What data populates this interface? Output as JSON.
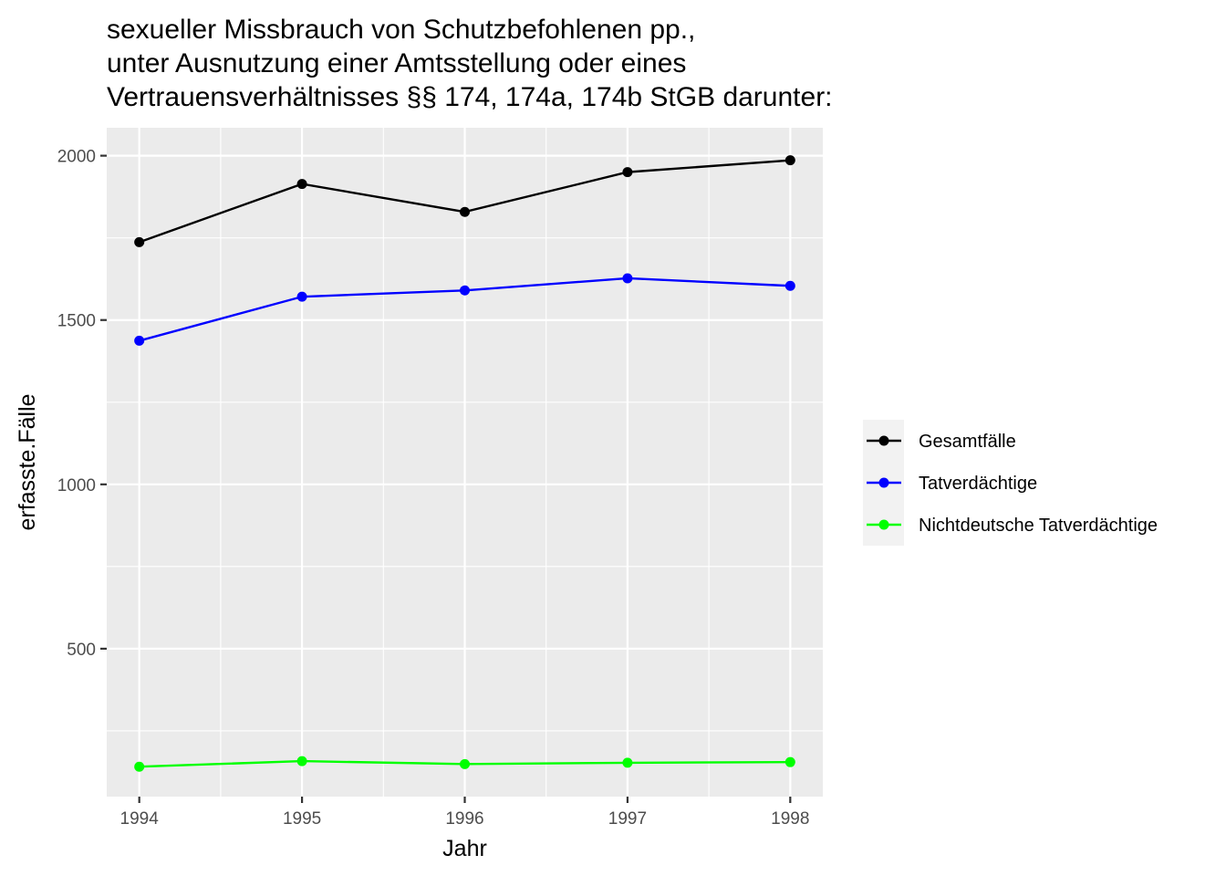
{
  "chart_data": {
    "type": "line",
    "title_lines": [
      "sexueller Missbrauch von Schutzbefohlenen pp.,",
      "unter Ausnutzung einer Amtsstellung oder eines",
      "Vertrauensverhältnisses §§ 174, 174a, 174b StGB darunter:"
    ],
    "xlabel": "Jahr",
    "ylabel": "erfasste.Fälle",
    "x": [
      1994,
      1995,
      1996,
      1997,
      1998
    ],
    "x_tick_labels": [
      "1994",
      "1995",
      "1996",
      "1997",
      "1998"
    ],
    "y_ticks": [
      500,
      1000,
      1500,
      2000
    ],
    "y_tick_labels": [
      "500",
      "1000",
      "1500",
      "2000"
    ],
    "xlim": [
      1993.8,
      1998.2
    ],
    "ylim": [
      50,
      2085
    ],
    "grid": true,
    "legend_position": "right",
    "series": [
      {
        "name": "Gesamtfälle",
        "color": "#000000",
        "values": [
          1737,
          1914,
          1829,
          1950,
          1986
        ]
      },
      {
        "name": "Tatverdächtige",
        "color": "#0000ff",
        "values": [
          1437,
          1571,
          1590,
          1627,
          1604
        ]
      },
      {
        "name": "Nichtdeutsche Tatverdächtige",
        "color": "#00ff00",
        "values": [
          141,
          158,
          149,
          153,
          155
        ]
      }
    ]
  }
}
